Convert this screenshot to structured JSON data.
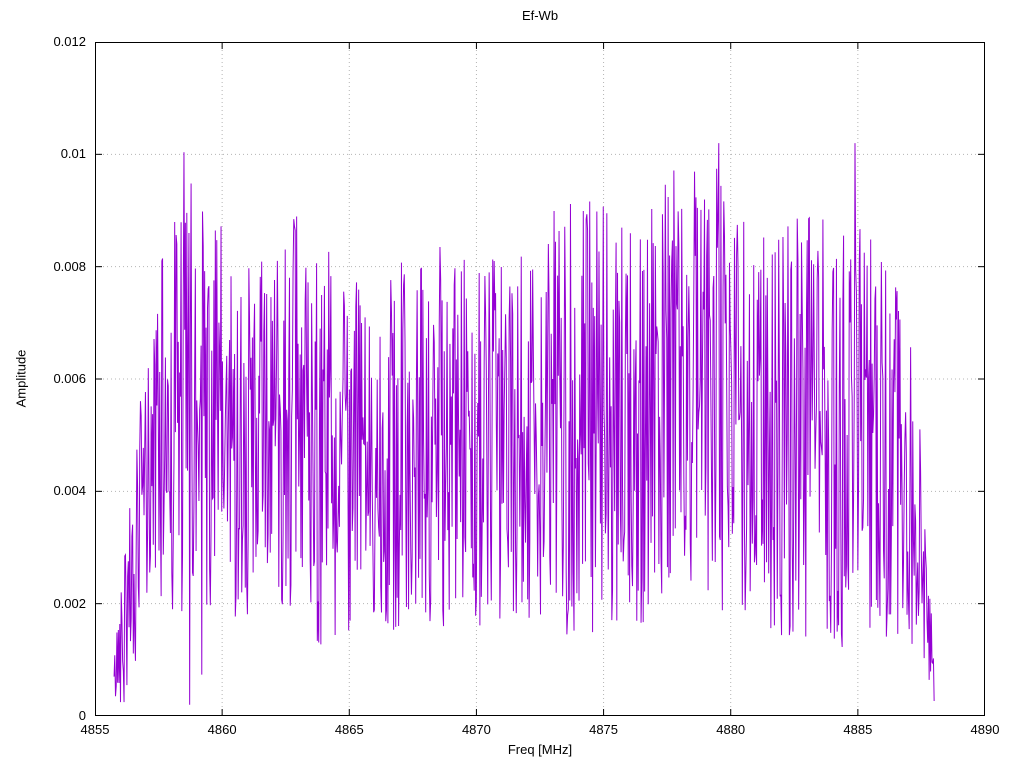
{
  "title": "Ef-Wb",
  "chart_data": {
    "type": "line",
    "title": "Ef-Wb",
    "xlabel": "Freq [MHz]",
    "ylabel": "Amplitude",
    "xlim": [
      4855,
      4890
    ],
    "ylim": [
      0,
      0.012
    ],
    "x_ticks": [
      4855,
      4860,
      4865,
      4870,
      4875,
      4880,
      4885,
      4890
    ],
    "x_tick_labels": [
      "4855",
      "4860",
      "4865",
      "4870",
      "4875",
      "4880",
      "4885",
      "4890"
    ],
    "y_ticks": [
      0,
      0.002,
      0.004,
      0.006,
      0.008,
      0.01,
      0.012
    ],
    "y_tick_labels": [
      "0",
      "0.002",
      "0.004",
      "0.006",
      "0.008",
      "0.01",
      "0.012"
    ],
    "grid": true,
    "grid_style": "dotted",
    "grid_color": "#b4b4b4",
    "border_color": "#000000",
    "legend": "none",
    "series": [
      {
        "name": "Ef-Wb",
        "color": "#9400D3",
        "x_start": 4855.75,
        "x_end": 4888.0,
        "num_points": 1150,
        "seed": 42,
        "value_min": 0.0002,
        "value_max": 0.0102,
        "peak_value": 0.0102,
        "peak_x": 4858.3,
        "envelope": [
          {
            "x": 4855.75,
            "mean": 0.0006,
            "spread": 0.0005
          },
          {
            "x": 4856.3,
            "mean": 0.0022,
            "spread": 0.0018
          },
          {
            "x": 4857.2,
            "mean": 0.0045,
            "spread": 0.0025
          },
          {
            "x": 4858.4,
            "mean": 0.0058,
            "spread": 0.0044
          },
          {
            "x": 4859.5,
            "mean": 0.0052,
            "spread": 0.004
          },
          {
            "x": 4861.0,
            "mean": 0.0048,
            "spread": 0.0032
          },
          {
            "x": 4862.5,
            "mean": 0.0055,
            "spread": 0.0035
          },
          {
            "x": 4864.0,
            "mean": 0.005,
            "spread": 0.0038
          },
          {
            "x": 4866.0,
            "mean": 0.0046,
            "spread": 0.003
          },
          {
            "x": 4868.0,
            "mean": 0.005,
            "spread": 0.0036
          },
          {
            "x": 4870.0,
            "mean": 0.0048,
            "spread": 0.0032
          },
          {
            "x": 4872.0,
            "mean": 0.005,
            "spread": 0.0034
          },
          {
            "x": 4874.0,
            "mean": 0.0054,
            "spread": 0.0042
          },
          {
            "x": 4876.0,
            "mean": 0.005,
            "spread": 0.0036
          },
          {
            "x": 4877.8,
            "mean": 0.006,
            "spread": 0.0038
          },
          {
            "x": 4879.5,
            "mean": 0.0058,
            "spread": 0.004
          },
          {
            "x": 4881.0,
            "mean": 0.005,
            "spread": 0.0036
          },
          {
            "x": 4883.0,
            "mean": 0.0052,
            "spread": 0.0038
          },
          {
            "x": 4885.0,
            "mean": 0.005,
            "spread": 0.004
          },
          {
            "x": 4886.5,
            "mean": 0.0045,
            "spread": 0.0032
          },
          {
            "x": 4887.5,
            "mean": 0.003,
            "spread": 0.002
          },
          {
            "x": 4888.0,
            "mean": 0.0006,
            "spread": 0.0004
          }
        ]
      }
    ]
  }
}
